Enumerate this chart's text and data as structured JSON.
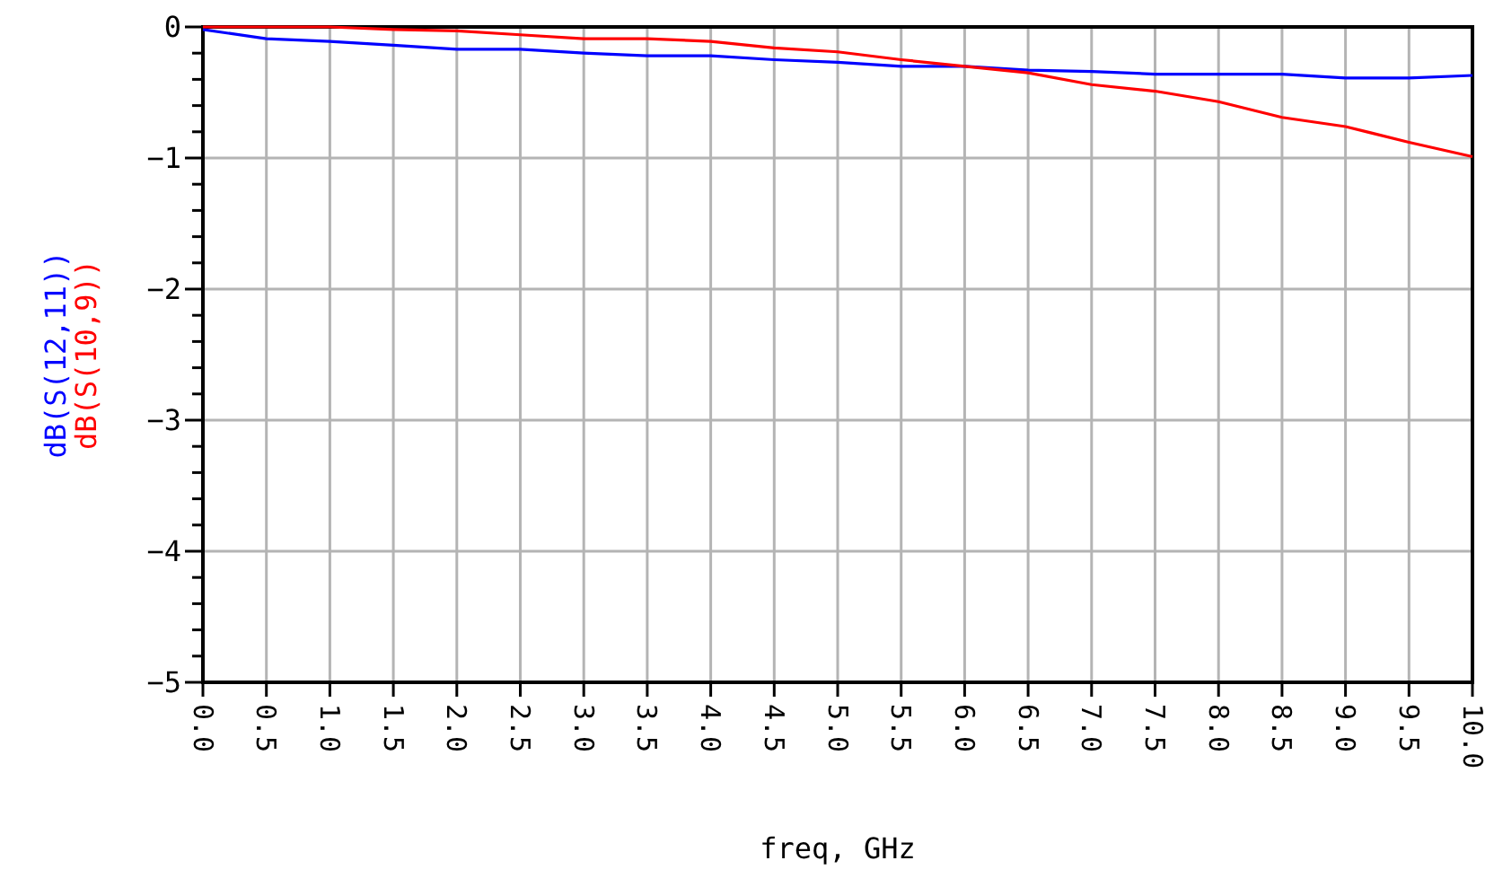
{
  "chart_data": {
    "type": "line",
    "xlabel": "freq, GHz",
    "x": [
      0,
      0.5,
      1,
      1.5,
      2,
      2.5,
      3,
      3.5,
      4,
      4.5,
      5,
      5.5,
      6,
      6.5,
      7,
      7.5,
      8,
      8.5,
      9,
      9.5,
      10
    ],
    "series": [
      {
        "name": "dB(S(12,11))",
        "color": "#0000ff",
        "values": [
          -0.02,
          -0.09,
          -0.11,
          -0.14,
          -0.17,
          -0.17,
          -0.2,
          -0.22,
          -0.22,
          -0.25,
          -0.27,
          -0.3,
          -0.3,
          -0.33,
          -0.34,
          -0.36,
          -0.36,
          -0.36,
          -0.39,
          -0.39,
          -0.37
        ]
      },
      {
        "name": "dB(S(10,9))",
        "color": "#ff0000",
        "values": [
          0,
          0,
          0,
          -0.02,
          -0.03,
          -0.06,
          -0.09,
          -0.09,
          -0.11,
          -0.16,
          -0.19,
          -0.25,
          -0.3,
          -0.35,
          -0.44,
          -0.49,
          -0.57,
          -0.69,
          -0.76,
          -0.88,
          -0.99
        ]
      }
    ],
    "xlim": [
      0,
      10
    ],
    "xticks": [
      {
        "value": 0,
        "label": "0.0"
      },
      {
        "value": 0.5,
        "label": "0.5"
      },
      {
        "value": 1,
        "label": "1.0"
      },
      {
        "value": 1.5,
        "label": "1.5"
      },
      {
        "value": 2,
        "label": "2.0"
      },
      {
        "value": 2.5,
        "label": "2.5"
      },
      {
        "value": 3,
        "label": "3.0"
      },
      {
        "value": 3.5,
        "label": "3.5"
      },
      {
        "value": 4,
        "label": "4.0"
      },
      {
        "value": 4.5,
        "label": "4.5"
      },
      {
        "value": 5,
        "label": "5.0"
      },
      {
        "value": 5.5,
        "label": "5.5"
      },
      {
        "value": 6,
        "label": "6.0"
      },
      {
        "value": 6.5,
        "label": "6.5"
      },
      {
        "value": 7,
        "label": "7.0"
      },
      {
        "value": 7.5,
        "label": "7.5"
      },
      {
        "value": 8,
        "label": "8.0"
      },
      {
        "value": 8.5,
        "label": "8.5"
      },
      {
        "value": 9,
        "label": "9.0"
      },
      {
        "value": 9.5,
        "label": "9.5"
      },
      {
        "value": 10,
        "label": "10.0"
      }
    ],
    "ylim": [
      -5,
      0
    ],
    "yticks": [
      {
        "value": -5,
        "label": "−5"
      },
      {
        "value": -4.8,
        "label": null
      },
      {
        "value": -4.6,
        "label": null
      },
      {
        "value": -4.4,
        "label": null
      },
      {
        "value": -4.2,
        "label": null
      },
      {
        "value": -4,
        "label": "−4"
      },
      {
        "value": -3.8,
        "label": null
      },
      {
        "value": -3.6,
        "label": null
      },
      {
        "value": -3.4,
        "label": null
      },
      {
        "value": -3.2,
        "label": null
      },
      {
        "value": -3,
        "label": "−3"
      },
      {
        "value": -2.8,
        "label": null
      },
      {
        "value": -2.6,
        "label": null
      },
      {
        "value": -2.4,
        "label": null
      },
      {
        "value": -2.2,
        "label": null
      },
      {
        "value": -2,
        "label": "−2"
      },
      {
        "value": -1.8,
        "label": null
      },
      {
        "value": -1.6,
        "label": null
      },
      {
        "value": -1.4,
        "label": null
      },
      {
        "value": -1.2,
        "label": null
      },
      {
        "value": -1,
        "label": "−1"
      },
      {
        "value": -0.8,
        "label": null
      },
      {
        "value": -0.6,
        "label": null
      },
      {
        "value": -0.4,
        "label": null
      },
      {
        "value": -0.2,
        "label": null
      },
      {
        "value": 0,
        "label": "0"
      }
    ],
    "grid": true,
    "line_style": "solid",
    "marker": "none"
  }
}
